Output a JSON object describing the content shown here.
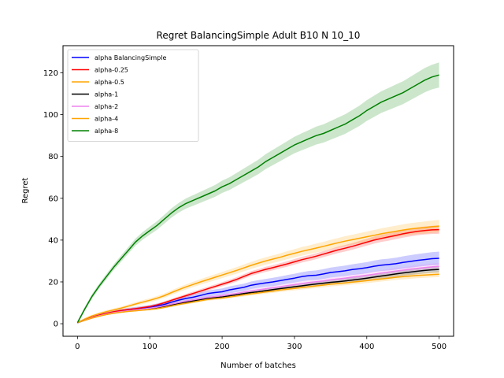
{
  "chart_data": {
    "type": "line",
    "title": "Regret BalancingSimple Adult B10 N 10_10",
    "xlabel": "Number of batches",
    "ylabel": "Regret",
    "xlim": [
      -20,
      520
    ],
    "ylim": [
      -6,
      133
    ],
    "xticks": [
      0,
      100,
      200,
      300,
      400,
      500
    ],
    "yticks": [
      0,
      20,
      40,
      60,
      80,
      100,
      120
    ],
    "grid": false,
    "legend_position": "upper-left",
    "series": [
      {
        "name": "alpha BalancingSimple",
        "color": "#0000ff",
        "x": [
          0,
          10,
          20,
          30,
          40,
          50,
          60,
          70,
          80,
          90,
          100,
          110,
          120,
          130,
          140,
          150,
          160,
          170,
          180,
          190,
          200,
          210,
          220,
          230,
          240,
          250,
          260,
          270,
          280,
          290,
          300,
          310,
          320,
          330,
          340,
          350,
          360,
          370,
          380,
          390,
          400,
          410,
          420,
          430,
          440,
          450,
          460,
          470,
          480,
          490,
          500
        ],
        "y": [
          0.5,
          1.8,
          3.0,
          4.0,
          4.9,
          5.6,
          6.2,
          6.7,
          7.1,
          7.5,
          7.9,
          8.5,
          9.2,
          10.3,
          11.3,
          12.1,
          12.7,
          13.5,
          14.4,
          14.9,
          15.3,
          16.2,
          16.8,
          17.4,
          18.4,
          19.0,
          19.5,
          20.0,
          20.6,
          21.2,
          21.8,
          22.5,
          23.0,
          23.2,
          23.8,
          24.5,
          24.9,
          25.3,
          25.9,
          26.3,
          26.8,
          27.5,
          28.0,
          28.3,
          28.7,
          29.3,
          29.8,
          30.3,
          30.7,
          31.1,
          31.3
        ],
        "band": 3.2
      },
      {
        "name": "alpha-0.25",
        "color": "#ff0000",
        "x": [
          0,
          10,
          20,
          30,
          40,
          50,
          60,
          70,
          80,
          90,
          100,
          110,
          120,
          130,
          140,
          150,
          160,
          170,
          180,
          190,
          200,
          210,
          220,
          230,
          240,
          250,
          260,
          270,
          280,
          290,
          300,
          310,
          320,
          330,
          340,
          350,
          360,
          370,
          380,
          390,
          400,
          410,
          420,
          430,
          440,
          450,
          460,
          470,
          480,
          490,
          500
        ],
        "y": [
          0.5,
          1.9,
          3.1,
          4.1,
          5.0,
          5.7,
          6.3,
          6.8,
          7.2,
          7.7,
          8.2,
          9.0,
          10.0,
          11.2,
          12.3,
          13.4,
          14.5,
          15.6,
          16.7,
          17.8,
          18.9,
          20.0,
          21.2,
          22.6,
          24.0,
          25.0,
          26.0,
          26.8,
          27.7,
          28.6,
          29.6,
          30.6,
          31.4,
          32.3,
          33.3,
          34.3,
          35.3,
          36.1,
          37.0,
          38.0,
          39.0,
          40.0,
          40.8,
          41.5,
          42.2,
          43.0,
          43.6,
          44.2,
          44.6,
          44.9,
          45.0
        ],
        "band": 2.0
      },
      {
        "name": "alpha-0.5",
        "color": "#ffa500",
        "x": [
          0,
          10,
          20,
          30,
          40,
          50,
          60,
          70,
          80,
          90,
          100,
          110,
          120,
          130,
          140,
          150,
          160,
          170,
          180,
          190,
          200,
          210,
          220,
          230,
          240,
          250,
          260,
          270,
          280,
          290,
          300,
          310,
          320,
          330,
          340,
          350,
          360,
          370,
          380,
          390,
          400,
          410,
          420,
          430,
          440,
          450,
          460,
          470,
          480,
          490,
          500
        ],
        "y": [
          0.5,
          2.2,
          3.7,
          4.8,
          5.8,
          6.6,
          7.4,
          8.4,
          9.4,
          10.3,
          11.2,
          12.2,
          13.4,
          14.9,
          16.3,
          17.6,
          18.8,
          20.0,
          21.1,
          22.2,
          23.3,
          24.4,
          25.5,
          26.7,
          27.9,
          29.0,
          30.0,
          30.9,
          31.8,
          32.8,
          33.7,
          34.6,
          35.4,
          36.2,
          37.0,
          37.9,
          38.7,
          39.5,
          40.2,
          40.9,
          41.6,
          42.3,
          43.0,
          43.6,
          44.2,
          44.8,
          45.3,
          45.7,
          46.0,
          46.4,
          46.7
        ],
        "band": 3.0
      },
      {
        "name": "alpha-1",
        "color": "#000000",
        "x": [
          0,
          10,
          20,
          30,
          40,
          50,
          60,
          70,
          80,
          90,
          100,
          110,
          120,
          130,
          140,
          150,
          160,
          170,
          180,
          190,
          200,
          210,
          220,
          230,
          240,
          250,
          260,
          270,
          280,
          290,
          300,
          310,
          320,
          330,
          340,
          350,
          360,
          370,
          380,
          390,
          400,
          410,
          420,
          430,
          440,
          450,
          460,
          470,
          480,
          490,
          500
        ],
        "y": [
          0.5,
          1.7,
          2.8,
          3.7,
          4.5,
          5.1,
          5.6,
          6.0,
          6.4,
          6.7,
          7.0,
          7.5,
          8.1,
          8.9,
          9.6,
          10.3,
          10.9,
          11.5,
          12.1,
          12.5,
          12.8,
          13.3,
          13.8,
          14.4,
          14.9,
          15.3,
          15.8,
          16.3,
          16.8,
          17.2,
          17.7,
          18.1,
          18.6,
          19.0,
          19.4,
          19.8,
          20.1,
          20.5,
          20.9,
          21.3,
          21.8,
          22.3,
          22.8,
          23.3,
          23.8,
          24.3,
          24.7,
          25.1,
          25.5,
          25.8,
          26.0
        ],
        "band": 1.5
      },
      {
        "name": "alpha-2",
        "color": "#ee82ee",
        "x": [
          0,
          10,
          20,
          30,
          40,
          50,
          60,
          70,
          80,
          90,
          100,
          110,
          120,
          130,
          140,
          150,
          160,
          170,
          180,
          190,
          200,
          210,
          220,
          230,
          240,
          250,
          260,
          270,
          280,
          290,
          300,
          310,
          320,
          330,
          340,
          350,
          360,
          370,
          380,
          390,
          400,
          410,
          420,
          430,
          440,
          450,
          460,
          470,
          480,
          490,
          500
        ],
        "y": [
          0.5,
          1.7,
          2.9,
          3.8,
          4.6,
          5.3,
          5.8,
          6.2,
          6.6,
          7.0,
          7.4,
          7.9,
          8.6,
          9.4,
          10.1,
          10.8,
          11.4,
          12.0,
          12.6,
          13.0,
          13.4,
          14.0,
          14.5,
          15.1,
          15.7,
          16.2,
          16.7,
          17.2,
          17.7,
          18.2,
          18.7,
          19.2,
          19.7,
          20.1,
          20.5,
          21.0,
          21.4,
          21.8,
          22.3,
          22.7,
          23.2,
          23.7,
          24.2,
          24.7,
          25.2,
          25.6,
          26.1,
          26.5,
          26.9,
          27.2,
          27.5
        ],
        "band": 1.6
      },
      {
        "name": "alpha-4",
        "color": "#ffa500",
        "x": [
          0,
          10,
          20,
          30,
          40,
          50,
          60,
          70,
          80,
          90,
          100,
          110,
          120,
          130,
          140,
          150,
          160,
          170,
          180,
          190,
          200,
          210,
          220,
          230,
          240,
          250,
          260,
          270,
          280,
          290,
          300,
          310,
          320,
          330,
          340,
          350,
          360,
          370,
          380,
          390,
          400,
          410,
          420,
          430,
          440,
          450,
          460,
          470,
          480,
          490,
          500
        ],
        "y": [
          0.5,
          1.6,
          2.7,
          3.6,
          4.4,
          5.0,
          5.5,
          5.9,
          6.2,
          6.5,
          6.8,
          7.2,
          7.8,
          8.5,
          9.2,
          9.8,
          10.4,
          11.0,
          11.6,
          12.0,
          12.3,
          12.8,
          13.3,
          13.8,
          14.3,
          14.7,
          15.2,
          15.6,
          16.1,
          16.5,
          16.9,
          17.3,
          17.7,
          18.1,
          18.5,
          18.9,
          19.2,
          19.5,
          19.9,
          20.2,
          20.6,
          21.0,
          21.4,
          21.8,
          22.2,
          22.5,
          22.8,
          23.1,
          23.3,
          23.5,
          23.7
        ],
        "band": 1.4
      },
      {
        "name": "alpha-8",
        "color": "#008000",
        "x": [
          0,
          10,
          20,
          30,
          40,
          50,
          60,
          70,
          80,
          90,
          100,
          110,
          120,
          130,
          140,
          150,
          160,
          170,
          180,
          190,
          200,
          210,
          220,
          230,
          240,
          250,
          260,
          270,
          280,
          290,
          300,
          310,
          320,
          330,
          340,
          350,
          360,
          370,
          380,
          390,
          400,
          410,
          420,
          430,
          440,
          450,
          460,
          470,
          480,
          490,
          500
        ],
        "y": [
          0.5,
          7.0,
          13.0,
          18.0,
          22.5,
          27.0,
          31.0,
          35.0,
          39.0,
          42.0,
          44.5,
          47.0,
          50.0,
          53.0,
          55.5,
          57.5,
          59.0,
          60.5,
          62.0,
          63.5,
          65.5,
          67.0,
          69.0,
          71.0,
          73.0,
          75.0,
          77.5,
          79.5,
          81.5,
          83.5,
          85.5,
          87.0,
          88.5,
          90.0,
          91.0,
          92.5,
          94.0,
          95.5,
          97.5,
          99.5,
          102.0,
          104.0,
          106.0,
          107.5,
          109.0,
          110.5,
          112.5,
          114.5,
          116.5,
          118.0,
          119.0
        ],
        "band": 6.0
      }
    ]
  }
}
